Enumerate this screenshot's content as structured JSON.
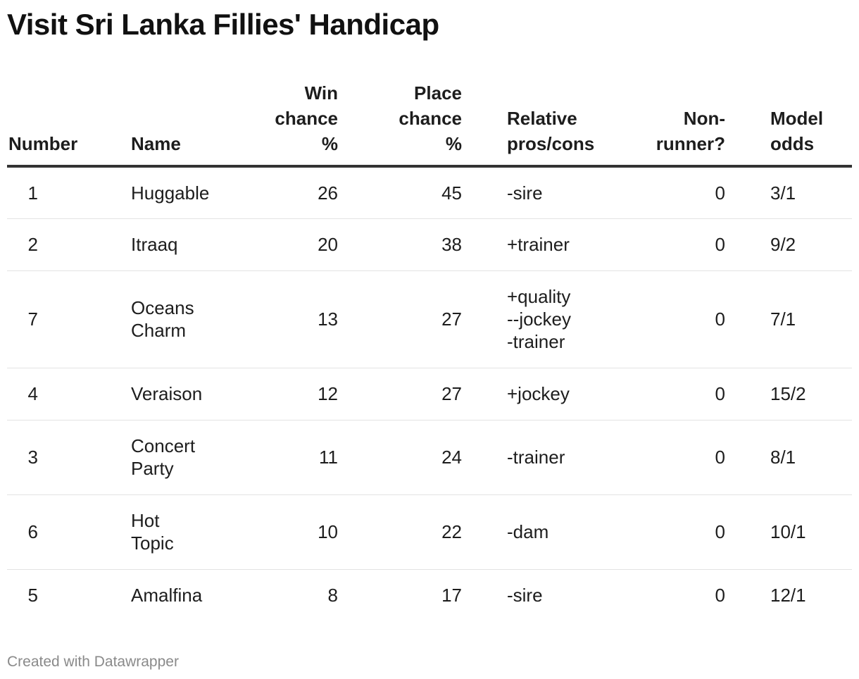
{
  "title": "Visit Sri Lanka Fillies' Handicap",
  "footer": "Created with Datawrapper",
  "chart_data": {
    "type": "table",
    "title": "Visit Sri Lanka Fillies' Handicap",
    "columns": [
      {
        "key": "number",
        "label": [
          "Number"
        ]
      },
      {
        "key": "name",
        "label": [
          "Name"
        ]
      },
      {
        "key": "win",
        "label": [
          "Win",
          "chance",
          "%"
        ]
      },
      {
        "key": "place",
        "label": [
          "Place",
          "chance",
          "%"
        ]
      },
      {
        "key": "pros",
        "label": [
          "Relative",
          "pros/cons"
        ]
      },
      {
        "key": "nonrunner",
        "label": [
          "Non-",
          "runner?"
        ]
      },
      {
        "key": "odds",
        "label": [
          "Model",
          "odds"
        ]
      }
    ],
    "rows": [
      {
        "number": "1",
        "name": [
          "Huggable"
        ],
        "win": "26",
        "place": "45",
        "pros": [
          "-sire"
        ],
        "nonrunner": "0",
        "odds": "3/1"
      },
      {
        "number": "2",
        "name": [
          "Itraaq"
        ],
        "win": "20",
        "place": "38",
        "pros": [
          "+trainer"
        ],
        "nonrunner": "0",
        "odds": "9/2"
      },
      {
        "number": "7",
        "name": [
          "Oceans",
          "Charm"
        ],
        "win": "13",
        "place": "27",
        "pros": [
          "+quality",
          "--jockey",
          "-trainer"
        ],
        "nonrunner": "0",
        "odds": "7/1"
      },
      {
        "number": "4",
        "name": [
          "Veraison"
        ],
        "win": "12",
        "place": "27",
        "pros": [
          "+jockey"
        ],
        "nonrunner": "0",
        "odds": "15/2"
      },
      {
        "number": "3",
        "name": [
          "Concert",
          "Party"
        ],
        "win": "11",
        "place": "24",
        "pros": [
          "-trainer"
        ],
        "nonrunner": "0",
        "odds": "8/1"
      },
      {
        "number": "6",
        "name": [
          "Hot",
          "Topic"
        ],
        "win": "10",
        "place": "22",
        "pros": [
          "-dam"
        ],
        "nonrunner": "0",
        "odds": "10/1"
      },
      {
        "number": "5",
        "name": [
          "Amalfina"
        ],
        "win": "8",
        "place": "17",
        "pros": [
          "-sire"
        ],
        "nonrunner": "0",
        "odds": "12/1"
      }
    ]
  }
}
